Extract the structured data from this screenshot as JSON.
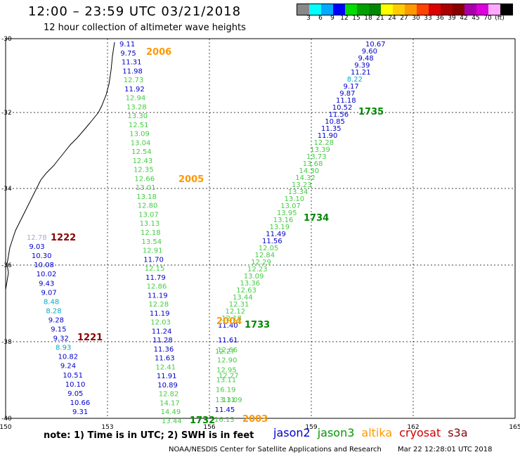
{
  "title": "12:00 – 23:59 UTC 03/21/2018",
  "subtitle": "12 hour collection of altimeter wave heights",
  "colorbar": {
    "colors": [
      "#888888",
      "#00ffff",
      "#00aaff",
      "#0000ff",
      "#00dd00",
      "#00a000",
      "#008800",
      "#ffff00",
      "#ffcc00",
      "#ff9900",
      "#ff4400",
      "#dd0000",
      "#aa0000",
      "#880000",
      "#aa00aa",
      "#dd00dd",
      "#ffaaff",
      "#000000"
    ],
    "labels": [
      "3",
      "6",
      "9",
      "12",
      "15",
      "18",
      "21",
      "24",
      "27",
      "30",
      "33",
      "36",
      "39",
      "42",
      "45",
      "70",
      "(ft)"
    ]
  },
  "axes": {
    "lon_labels": [
      "150",
      "153",
      "156",
      "159",
      "162",
      "165"
    ],
    "lat_labels": [
      "-30",
      "-32",
      "-34",
      "-36",
      "-38",
      "-40"
    ]
  },
  "note": "note:  1) Time is in UTC;  2) SWH is in feet",
  "credit": "NOAA/NESDIS Center for Satellite Applications and Research",
  "timestamp": "Mar 22 12:28:01 UTC 2018",
  "legend": [
    {
      "name": "jason2",
      "color": "#0000cc"
    },
    {
      "name": "jason3",
      "color": "#009900"
    },
    {
      "name": "altika",
      "color": "#ff9900"
    },
    {
      "name": "cryosat",
      "color": "#cc0000"
    },
    {
      "name": "s3a",
      "color": "#880000"
    }
  ],
  "times": [
    {
      "text": "2006",
      "color": "#ff9900"
    },
    {
      "text": "2005",
      "color": "#ff9900"
    },
    {
      "text": "1735",
      "color": "#008800"
    },
    {
      "text": "1734",
      "color": "#008800"
    },
    {
      "text": "1733",
      "color": "#008800"
    },
    {
      "text": "1222",
      "color": "#880000"
    },
    {
      "text": "1221",
      "color": "#880000"
    },
    {
      "text": "2004",
      "color": "#ff9900"
    },
    {
      "text": "1732",
      "color": "#008800"
    },
    {
      "text": "2003",
      "color": "#ff9900"
    }
  ],
  "tracks": {
    "altika_a": {
      "values": [
        "9.11",
        "9.75",
        "11.31",
        "11.98",
        "12.73",
        "11.92",
        "12.94",
        "13.28",
        "13.30",
        "12.51",
        "13.09",
        "13.04",
        "12.54",
        "12.43",
        "12.35",
        "12.66",
        "13.01",
        "13.18",
        "12.80",
        "13.07",
        "13.13",
        "12.18",
        "13.54",
        "12.91",
        "11.70",
        "12.15",
        "11.79",
        "12.86",
        "11.19",
        "12.28",
        "11.19",
        "12.03",
        "11.24",
        "11.28",
        "11.36",
        "11.63",
        "12.41",
        "11.91",
        "10.89",
        "12.82",
        "14.17",
        "14.49",
        "13.44"
      ],
      "colors": [
        "#0000cc",
        "#0000cc",
        "#0000cc",
        "#0000cc",
        "#44cc44",
        "#0000cc",
        "#44cc44",
        "#44cc44",
        "#44cc44",
        "#44cc44",
        "#44cc44",
        "#44cc44",
        "#44cc44",
        "#44cc44",
        "#44cc44",
        "#44cc44",
        "#44cc44",
        "#44cc44",
        "#44cc44",
        "#44cc44",
        "#44cc44",
        "#44cc44",
        "#44cc44",
        "#44cc44",
        "#0000cc",
        "#44cc44",
        "#0000cc",
        "#44cc44",
        "#0000cc",
        "#44cc44",
        "#0000cc",
        "#44cc44",
        "#0000cc",
        "#0000cc",
        "#0000cc",
        "#0000cc",
        "#44cc44",
        "#0000cc",
        "#0000cc",
        "#44cc44",
        "#44cc44",
        "#44cc44",
        "#44cc44"
      ]
    },
    "jason3": {
      "values": [
        "10.67",
        "9.60",
        "9.48",
        "9.39",
        "11.21",
        "8.22",
        "9.17",
        "9.87",
        "11.18",
        "10.52",
        "11.56",
        "10.85",
        "11.35",
        "11.90",
        "12.28",
        "13.39",
        "13.73",
        "13.68",
        "14.30",
        "14.32",
        "13.23",
        "13.34",
        "13.10",
        "13.07",
        "13.95",
        "13.16",
        "13.19",
        "11.49",
        "11.56",
        "12.05",
        "12.84",
        "12.29",
        "12.23",
        "13.09",
        "13.36",
        "12.63",
        "13.44",
        "12.31",
        "12.12",
        "12.18",
        "11.40"
      ],
      "colors": [
        "#0000cc",
        "#0000cc",
        "#0000cc",
        "#0000cc",
        "#0000cc",
        "#00aacc",
        "#0000cc",
        "#0000cc",
        "#0000cc",
        "#0000cc",
        "#0000cc",
        "#0000cc",
        "#0000cc",
        "#0000cc",
        "#44cc44",
        "#44cc44",
        "#44cc44",
        "#44cc44",
        "#44cc44",
        "#44cc44",
        "#44cc44",
        "#44cc44",
        "#44cc44",
        "#44cc44",
        "#44cc44",
        "#44cc44",
        "#44cc44",
        "#0000cc",
        "#0000cc",
        "#44cc44",
        "#44cc44",
        "#44cc44",
        "#44cc44",
        "#44cc44",
        "#44cc44",
        "#44cc44",
        "#44cc44",
        "#44cc44",
        "#44cc44",
        "#44cc44",
        "#0000cc"
      ]
    },
    "jason3_south": {
      "values": [
        "11.61",
        "12.66",
        "12.90",
        "12.95",
        "13.11",
        "16.19",
        "13.11",
        "11.45",
        "16.13"
      ],
      "colors": [
        "#0000cc",
        "#44cc44",
        "#44cc44",
        "#44cc44",
        "#44cc44",
        "#44cc44",
        "#44cc44",
        "#0000cc",
        "#44cc44"
      ]
    },
    "cryosat": {
      "values": [
        "12.78",
        "9.03",
        "10.30",
        "10.08",
        "10.02",
        "9.43",
        "9.07",
        "8.48",
        "8.28",
        "9.28",
        "9.15",
        "9.32",
        "8.93",
        "10.82",
        "9.24",
        "10.51",
        "10.10",
        "9.05",
        "10.66",
        "9.31"
      ],
      "colors": [
        "#aaaacc",
        "#0000cc",
        "#0000cc",
        "#0000cc",
        "#0000cc",
        "#0000cc",
        "#0000cc",
        "#00aacc",
        "#00aacc",
        "#0000cc",
        "#0000cc",
        "#0000cc",
        "#00aacc",
        "#0000cc",
        "#0000cc",
        "#0000cc",
        "#0000cc",
        "#0000cc",
        "#0000cc",
        "#0000cc"
      ]
    },
    "mid_extra": {
      "values": [
        "12.27",
        "12.27",
        "13.09"
      ],
      "colors": [
        "#44cc44",
        "#44cc44",
        "#44cc44"
      ]
    }
  }
}
